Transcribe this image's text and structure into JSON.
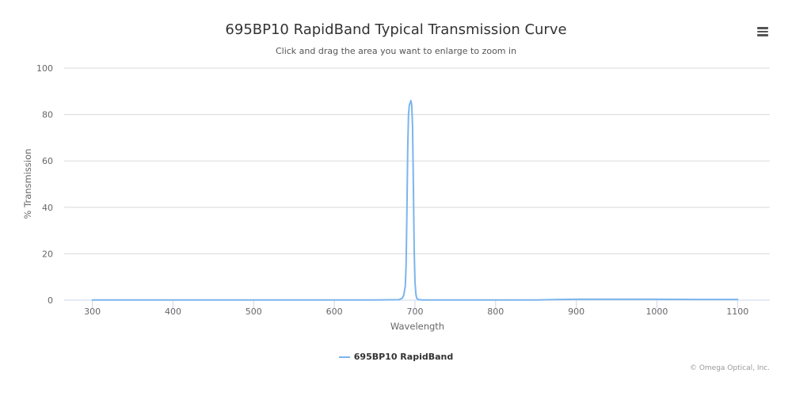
{
  "colors": {
    "series": "#7cb5ec",
    "grid": "#d8d8d8",
    "axis_line": "#ccd6eb"
  },
  "menu": {
    "icon": "hamburger-menu-icon"
  },
  "credits": "© Omega Optical, Inc.",
  "chart_data": {
    "type": "line",
    "title": "695BP10 RapidBand Typical Transmission Curve",
    "subtitle": "Click and drag the area you want to enlarge to zoom in",
    "xlabel": "Wavelength",
    "ylabel": "% Transmission",
    "xlim": [
      265,
      1140
    ],
    "ylim": [
      0,
      100
    ],
    "x_ticks": [
      300,
      400,
      500,
      600,
      700,
      800,
      900,
      1000,
      1100
    ],
    "y_ticks": [
      0,
      20,
      40,
      60,
      80,
      100
    ],
    "grid": true,
    "legend_position": "bottom-center",
    "series": [
      {
        "name": "695BP10 RapidBand",
        "x": [
          300,
          400,
          500,
          600,
          650,
          680,
          684,
          686,
          688,
          689,
          690,
          691,
          692,
          693,
          694,
          695,
          696,
          697,
          698,
          699,
          700,
          701,
          702,
          703,
          705,
          710,
          750,
          800,
          850,
          880,
          900,
          950,
          1000,
          1050,
          1100
        ],
        "y": [
          0.1,
          0.1,
          0.1,
          0.1,
          0.1,
          0.2,
          0.8,
          2,
          6,
          15,
          38,
          65,
          80,
          84,
          85,
          86,
          84,
          75,
          50,
          22,
          8,
          3,
          1,
          0.5,
          0.2,
          0.1,
          0.1,
          0.1,
          0.1,
          0.3,
          0.4,
          0.4,
          0.4,
          0.3,
          0.3
        ]
      }
    ]
  }
}
